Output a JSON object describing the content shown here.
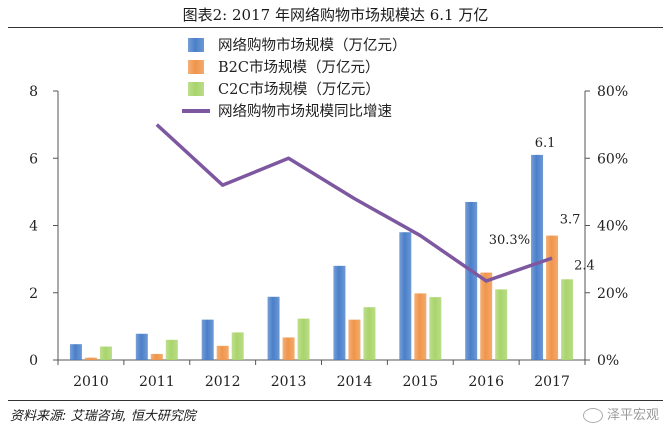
{
  "figure": {
    "title": "图表2:  2017 年网络购物市场规模达 6.1 万亿",
    "source": "资料来源: 艾瑞咨询, 恒大研究院",
    "watermark": "泽平宏观"
  },
  "colors": {
    "series1": "#4a7fc9",
    "series2": "#f0954a",
    "series3": "#a9d46b",
    "line": "#7d58a0"
  },
  "chart_data": {
    "type": "bar",
    "title": "2017 年网络购物市场规模达 6.1 万亿",
    "categories": [
      "2010",
      "2011",
      "2012",
      "2013",
      "2014",
      "2015",
      "2016",
      "2017"
    ],
    "series": [
      {
        "name": "网络购物市场规模（万亿元）",
        "kind": "bar",
        "axis": "left",
        "values": [
          0.47,
          0.78,
          1.2,
          1.88,
          2.8,
          3.8,
          4.7,
          6.1
        ]
      },
      {
        "name": "B2C市场规模（万亿元）",
        "kind": "bar",
        "axis": "left",
        "values": [
          0.07,
          0.18,
          0.42,
          0.67,
          1.2,
          1.98,
          2.6,
          3.7
        ]
      },
      {
        "name": "C2C市场规模（万亿元）",
        "kind": "bar",
        "axis": "left",
        "values": [
          0.4,
          0.6,
          0.82,
          1.23,
          1.57,
          1.87,
          2.1,
          2.4
        ]
      },
      {
        "name": "网络购物市场规模同比增速",
        "kind": "line",
        "axis": "right",
        "values": [
          null,
          70,
          52,
          60,
          48,
          37,
          23.5,
          30.3
        ]
      }
    ],
    "ylim": [
      0,
      8
    ],
    "yticks": [
      "0",
      "2",
      "4",
      "6",
      "8"
    ],
    "y2lim": [
      0,
      80
    ],
    "y2ticks": [
      "0%",
      "20%",
      "40%",
      "60%",
      "80%"
    ],
    "annotations": [
      {
        "text": "6.1",
        "category": "2017",
        "series": 0
      },
      {
        "text": "3.7",
        "category": "2017",
        "series": 1
      },
      {
        "text": "2.4",
        "category": "2017",
        "series": 2
      },
      {
        "text": "30.3%",
        "category": "2017",
        "series": 3
      }
    ],
    "legend": "top-center",
    "grid": false
  }
}
